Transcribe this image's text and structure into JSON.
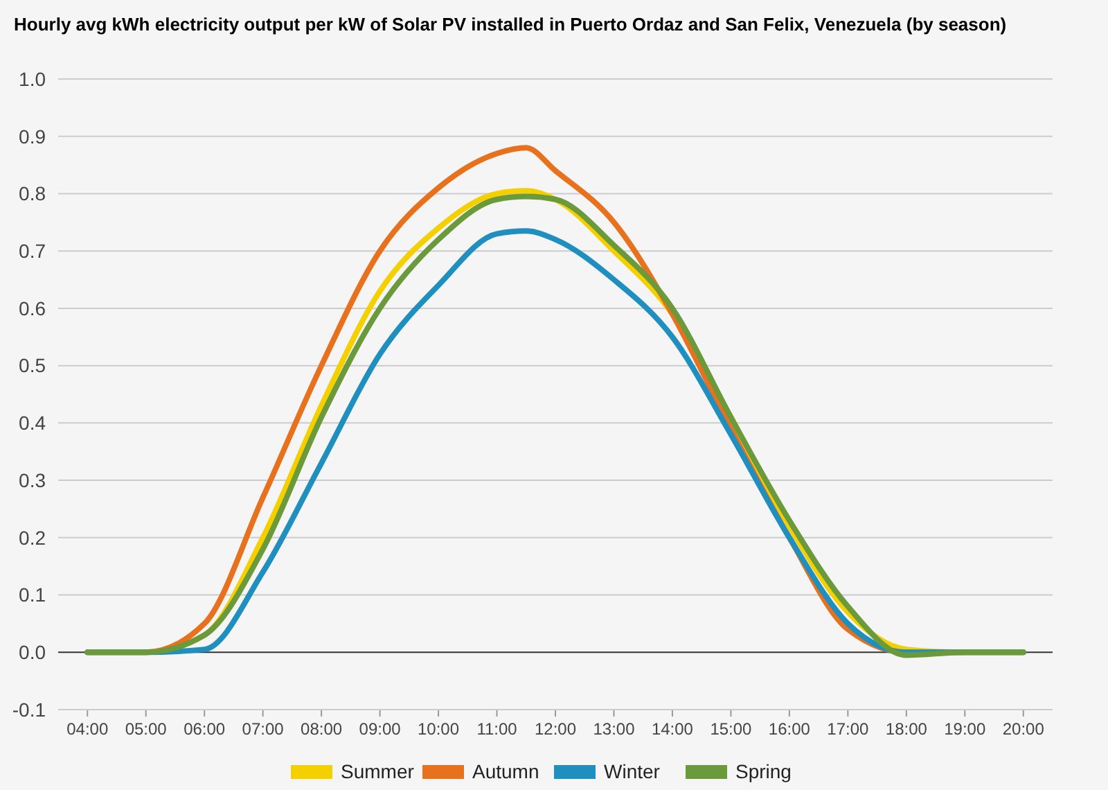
{
  "chart_data": {
    "type": "line",
    "title": "Hourly avg kWh electricity output per kW of Solar PV installed in Puerto Ordaz and San Felix, Venezuela (by season)",
    "x": [
      4,
      5,
      6,
      7,
      8,
      9,
      10,
      11,
      11.5,
      12,
      13,
      14,
      15,
      16,
      17,
      18,
      19,
      20
    ],
    "series": [
      {
        "name": "Summer",
        "color": "#f5d000",
        "values": [
          0,
          0,
          0.03,
          0.2,
          0.43,
          0.63,
          0.74,
          0.8,
          0.805,
          0.79,
          0.7,
          0.59,
          0.41,
          0.22,
          0.07,
          0.005,
          0,
          0
        ]
      },
      {
        "name": "Autumn",
        "color": "#e8711d",
        "values": [
          0,
          0,
          0.05,
          0.27,
          0.5,
          0.7,
          0.81,
          0.87,
          0.88,
          0.84,
          0.75,
          0.59,
          0.39,
          0.2,
          0.04,
          0,
          0,
          0
        ]
      },
      {
        "name": "Winter",
        "color": "#1f8fbf",
        "values": [
          0,
          0,
          0.005,
          0.14,
          0.33,
          0.52,
          0.64,
          0.73,
          0.735,
          0.72,
          0.65,
          0.55,
          0.38,
          0.2,
          0.05,
          0,
          0,
          0
        ]
      },
      {
        "name": "Spring",
        "color": "#6a9a3c",
        "values": [
          0,
          0,
          0.03,
          0.18,
          0.41,
          0.6,
          0.72,
          0.79,
          0.795,
          0.79,
          0.71,
          0.6,
          0.41,
          0.23,
          0.08,
          -0.005,
          0,
          0
        ]
      }
    ],
    "xlim": [
      3.5,
      20.5
    ],
    "xticks": [
      {
        "value": 4,
        "label": "04:00"
      },
      {
        "value": 5,
        "label": "05:00"
      },
      {
        "value": 6,
        "label": "06:00"
      },
      {
        "value": 7,
        "label": "07:00"
      },
      {
        "value": 8,
        "label": "08:00"
      },
      {
        "value": 9,
        "label": "09:00"
      },
      {
        "value": 10,
        "label": "10:00"
      },
      {
        "value": 11,
        "label": "11:00"
      },
      {
        "value": 12,
        "label": "12:00"
      },
      {
        "value": 13,
        "label": "13:00"
      },
      {
        "value": 14,
        "label": "14:00"
      },
      {
        "value": 15,
        "label": "15:00"
      },
      {
        "value": 16,
        "label": "16:00"
      },
      {
        "value": 17,
        "label": "17:00"
      },
      {
        "value": 18,
        "label": "18:00"
      },
      {
        "value": 19,
        "label": "19:00"
      },
      {
        "value": 20,
        "label": "20:00"
      }
    ],
    "ylim": [
      -0.1,
      1.0
    ],
    "yticks": [
      {
        "value": -0.1,
        "label": "-0.1"
      },
      {
        "value": 0,
        "label": "0.0"
      },
      {
        "value": 0.1,
        "label": "0.1"
      },
      {
        "value": 0.2,
        "label": "0.2"
      },
      {
        "value": 0.3,
        "label": "0.3"
      },
      {
        "value": 0.4,
        "label": "0.4"
      },
      {
        "value": 0.5,
        "label": "0.5"
      },
      {
        "value": 0.6,
        "label": "0.6"
      },
      {
        "value": 0.7,
        "label": "0.7"
      },
      {
        "value": 0.8,
        "label": "0.8"
      },
      {
        "value": 0.9,
        "label": "0.9"
      },
      {
        "value": 1.0,
        "label": "1.0"
      }
    ],
    "grid": "y",
    "legend": "bottom",
    "marker": "none",
    "line_style": "solid"
  }
}
